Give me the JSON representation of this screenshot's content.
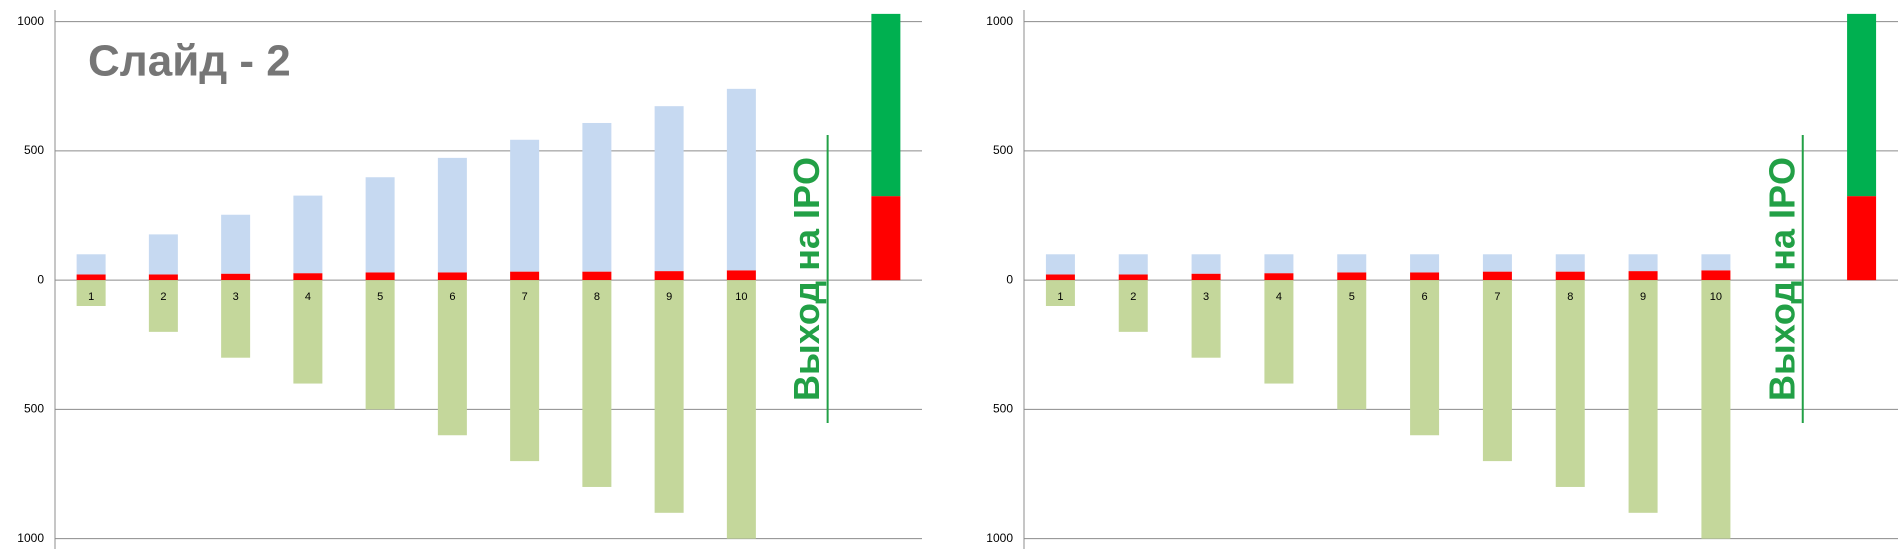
{
  "chart_data": [
    {
      "type": "bar",
      "title": "Слайд - 2",
      "stacked": true,
      "annotation": "Выход на IPO",
      "categories": [
        "1",
        "2",
        "3",
        "4",
        "5",
        "6",
        "7",
        "8",
        "9",
        "10",
        null,
        null
      ],
      "series": [
        {
          "color": "#ff0000",
          "values": [
            22,
            22,
            25,
            27,
            30,
            30,
            33,
            33,
            35,
            38,
            null,
            325
          ]
        },
        {
          "color": "#c6d9f1",
          "values": [
            78,
            155,
            228,
            300,
            368,
            443,
            510,
            575,
            638,
            702,
            null,
            null
          ]
        },
        {
          "color": "#00b050",
          "values": [
            null,
            null,
            null,
            null,
            null,
            null,
            null,
            null,
            null,
            null,
            null,
            705
          ]
        },
        {
          "color": "#c4d79b",
          "values": [
            -100,
            -200,
            -300,
            -400,
            -500,
            -600,
            -700,
            -800,
            -900,
            -1000,
            null,
            null
          ]
        }
      ],
      "ylim": [
        -1040,
        1045
      ],
      "yticks": [
        {
          "value": -1000,
          "label": "1000"
        },
        {
          "value": -500,
          "label": "500"
        },
        0,
        500,
        1000
      ],
      "grid": true
    },
    {
      "type": "bar",
      "stacked": true,
      "annotation": "Выход на IPO",
      "categories": [
        "1",
        "2",
        "3",
        "4",
        "5",
        "6",
        "7",
        "8",
        "9",
        "10",
        null,
        null
      ],
      "series": [
        {
          "color": "#ff0000",
          "values": [
            22,
            22,
            25,
            27,
            30,
            30,
            33,
            33,
            35,
            38,
            null,
            325
          ]
        },
        {
          "color": "#c6d9f1",
          "values": [
            78,
            78,
            75,
            73,
            70,
            70,
            67,
            67,
            65,
            62,
            null,
            null
          ]
        },
        {
          "color": "#00b050",
          "values": [
            null,
            null,
            null,
            null,
            null,
            null,
            null,
            null,
            null,
            null,
            null,
            705
          ]
        },
        {
          "color": "#c4d79b",
          "values": [
            -100,
            -200,
            -300,
            -400,
            -500,
            -600,
            -700,
            -800,
            -900,
            -1000,
            null,
            null
          ]
        }
      ],
      "ylim": [
        -1040,
        1045
      ],
      "yticks": [
        {
          "value": -1000,
          "label": "1000"
        },
        {
          "value": -500,
          "label": "500"
        },
        0,
        500,
        1000
      ],
      "grid": true
    }
  ]
}
